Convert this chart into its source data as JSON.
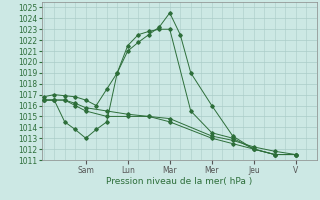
{
  "xlabel": "Pression niveau de la mer( hPa )",
  "bg_color": "#cce8e4",
  "grid_color": "#aaccc8",
  "line_color": "#2d6e3a",
  "ylim": [
    1011,
    1025.5
  ],
  "yticks": [
    1011,
    1012,
    1013,
    1014,
    1015,
    1016,
    1017,
    1018,
    1019,
    1020,
    1021,
    1022,
    1023,
    1024,
    1025
  ],
  "day_labels": [
    "Sam",
    "Lun",
    "Mar",
    "Mer",
    "Jeu",
    "V"
  ],
  "day_positions": [
    2.0,
    4.0,
    6.0,
    8.0,
    10.0,
    12.0
  ],
  "xlim": [
    -0.1,
    13.0
  ],
  "series": [
    {
      "x": [
        0,
        0.5,
        1.0,
        1.5,
        2.0,
        2.5,
        3.0,
        3.5,
        4.0,
        4.5,
        5.0,
        5.5,
        6.0,
        6.5,
        7.0,
        8.0,
        9.0,
        10.0,
        11.0,
        12.0
      ],
      "y": [
        1016.8,
        1017.0,
        1016.9,
        1016.8,
        1016.5,
        1016.0,
        1017.5,
        1019.0,
        1021.0,
        1021.8,
        1022.5,
        1023.2,
        1024.5,
        1022.5,
        1019.0,
        1016.0,
        1013.2,
        1012.0,
        1011.5,
        1011.5
      ]
    },
    {
      "x": [
        0,
        0.5,
        1.0,
        1.5,
        2.0,
        2.5,
        3.0,
        3.5,
        4.0,
        4.5,
        5.0,
        5.5,
        6.0,
        7.0,
        8.0,
        9.0,
        10.0,
        11.0,
        12.0
      ],
      "y": [
        1016.5,
        1016.5,
        1014.5,
        1013.8,
        1013.0,
        1013.8,
        1014.5,
        1019.0,
        1021.5,
        1022.5,
        1022.8,
        1023.0,
        1023.0,
        1015.5,
        1013.5,
        1013.0,
        1012.0,
        1011.5,
        1011.5
      ]
    },
    {
      "x": [
        0,
        0.5,
        1.0,
        1.5,
        2.0,
        3.0,
        4.0,
        5.0,
        6.0,
        8.0,
        9.0,
        10.0,
        11.0,
        12.0
      ],
      "y": [
        1016.5,
        1016.5,
        1016.5,
        1016.0,
        1015.5,
        1015.0,
        1015.0,
        1015.0,
        1014.5,
        1013.0,
        1012.5,
        1012.0,
        1011.5,
        1011.5
      ]
    },
    {
      "x": [
        0,
        0.5,
        1.0,
        1.5,
        2.0,
        3.0,
        4.0,
        5.0,
        6.0,
        8.0,
        9.0,
        10.0,
        11.0,
        12.0
      ],
      "y": [
        1016.5,
        1016.5,
        1016.5,
        1016.2,
        1015.8,
        1015.5,
        1015.2,
        1015.0,
        1014.8,
        1013.2,
        1012.8,
        1012.2,
        1011.8,
        1011.5
      ]
    }
  ]
}
